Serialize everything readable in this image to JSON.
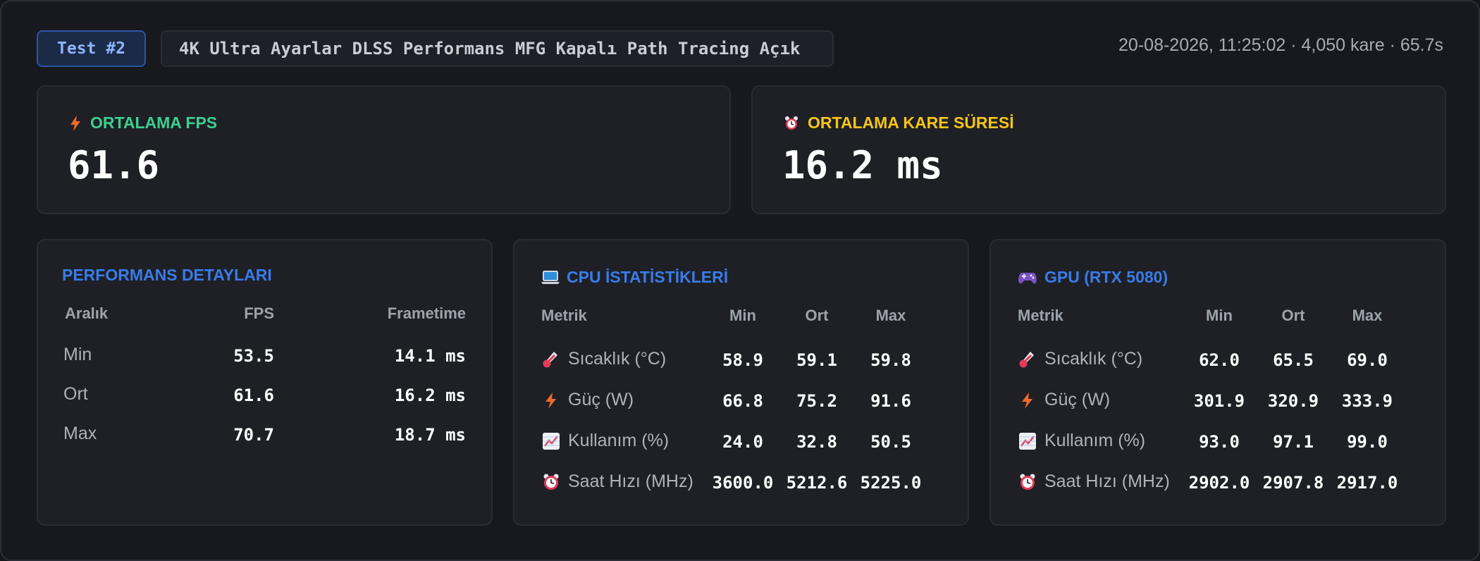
{
  "header": {
    "test_badge": "Test #2",
    "config": "4K Ultra Ayarlar DLSS Performans MFG Kapalı Path Tracing Açık",
    "meta": "20-08-2026, 11:25:02 · 4,050 kare · 65.7s"
  },
  "summary": {
    "avg_fps": {
      "label": "ORTALAMA FPS",
      "value": "61.6",
      "icon": "bolt-icon",
      "color": "#3ecf8e"
    },
    "avg_frametime": {
      "label": "ORTALAMA KARE SÜRESİ",
      "value": "16.2 ms",
      "icon": "alarm-clock-icon",
      "color": "#f5c518"
    }
  },
  "performance": {
    "title": "PERFORMANS DETAYLARI",
    "headers": [
      "Aralık",
      "FPS",
      "Frametime"
    ],
    "rows": [
      {
        "label": "Min",
        "fps": "53.5",
        "frametime": "14.1 ms"
      },
      {
        "label": "Ort",
        "fps": "61.6",
        "frametime": "16.2 ms"
      },
      {
        "label": "Max",
        "fps": "70.7",
        "frametime": "18.7 ms"
      }
    ]
  },
  "cpu": {
    "title": "CPU İSTATİSTİKLERİ",
    "icon": "laptop-icon",
    "headers": [
      "Metrik",
      "Min",
      "Ort",
      "Max"
    ],
    "rows": [
      {
        "icon": "thermometer-icon",
        "label": "Sıcaklık (°C)",
        "min": "58.9",
        "avg": "59.1",
        "max": "59.8"
      },
      {
        "icon": "bolt-icon",
        "label": "Güç (W)",
        "min": "66.8",
        "avg": "75.2",
        "max": "91.6"
      },
      {
        "icon": "chart-increasing-icon",
        "label": "Kullanım (%)",
        "min": "24.0",
        "avg": "32.8",
        "max": "50.5"
      },
      {
        "icon": "alarm-clock-icon",
        "label": "Saat Hızı (MHz)",
        "min": "3600.0",
        "avg": "5212.6",
        "max": "5225.0"
      }
    ]
  },
  "gpu": {
    "title": "GPU (RTX 5080)",
    "icon": "gamepad-icon",
    "headers": [
      "Metrik",
      "Min",
      "Ort",
      "Max"
    ],
    "rows": [
      {
        "icon": "thermometer-icon",
        "label": "Sıcaklık (°C)",
        "min": "62.0",
        "avg": "65.5",
        "max": "69.0"
      },
      {
        "icon": "bolt-icon",
        "label": "Güç (W)",
        "min": "301.9",
        "avg": "320.9",
        "max": "333.9"
      },
      {
        "icon": "chart-increasing-icon",
        "label": "Kullanım (%)",
        "min": "93.0",
        "avg": "97.1",
        "max": "99.0"
      },
      {
        "icon": "alarm-clock-icon",
        "label": "Saat Hızı (MHz)",
        "min": "2902.0",
        "avg": "2907.8",
        "max": "2917.0"
      }
    ]
  }
}
